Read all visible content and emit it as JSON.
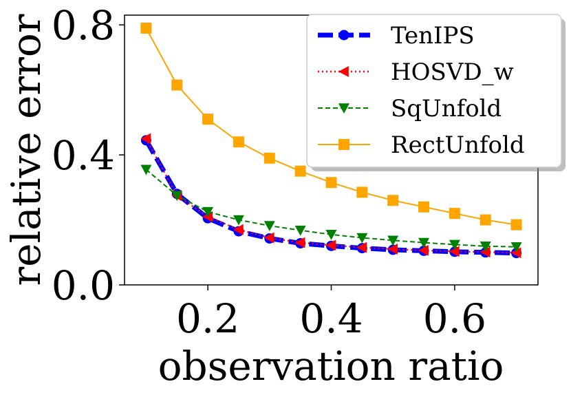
{
  "chart_data": {
    "type": "line",
    "title": "",
    "xlabel": "observation ratio",
    "ylabel": "relative error",
    "xlim": [
      0.065,
      0.735
    ],
    "ylim": [
      0.0,
      0.83
    ],
    "x": [
      0.1,
      0.15,
      0.2,
      0.25,
      0.3,
      0.35,
      0.4,
      0.45,
      0.5,
      0.55,
      0.6,
      0.65,
      0.7
    ],
    "x_ticks": [
      0.2,
      0.4,
      0.6
    ],
    "x_tick_labels": [
      "0.2",
      "0.4",
      "0.6"
    ],
    "y_ticks": [
      0.0,
      0.4,
      0.8
    ],
    "y_tick_labels": [
      "0.0",
      "0.4",
      "0.8"
    ],
    "legend_position": "top-right",
    "series": [
      {
        "name": "TenIPS",
        "color": "#0000ff",
        "line_style": "dashed-thick",
        "marker": "circle",
        "values": [
          0.445,
          0.28,
          0.205,
          0.165,
          0.143,
          0.128,
          0.12,
          0.113,
          0.108,
          0.105,
          0.102,
          0.1,
          0.098
        ]
      },
      {
        "name": "HOSVD_w",
        "color": "#ff0000",
        "line_style": "dotted",
        "marker": "triangle-left",
        "values": [
          0.45,
          0.275,
          0.21,
          0.17,
          0.145,
          0.13,
          0.122,
          0.115,
          0.11,
          0.106,
          0.103,
          0.101,
          0.099
        ]
      },
      {
        "name": "SqUnfold",
        "color": "#008000",
        "line_style": "dashed",
        "marker": "triangle-down",
        "values": [
          0.355,
          0.275,
          0.225,
          0.2,
          0.182,
          0.168,
          0.155,
          0.145,
          0.137,
          0.13,
          0.124,
          0.119,
          0.117
        ]
      },
      {
        "name": "RectUnfold",
        "color": "#ffa500",
        "line_style": "solid",
        "marker": "square",
        "values": [
          0.79,
          0.615,
          0.51,
          0.44,
          0.39,
          0.35,
          0.315,
          0.285,
          0.26,
          0.24,
          0.22,
          0.2,
          0.185
        ]
      }
    ]
  }
}
